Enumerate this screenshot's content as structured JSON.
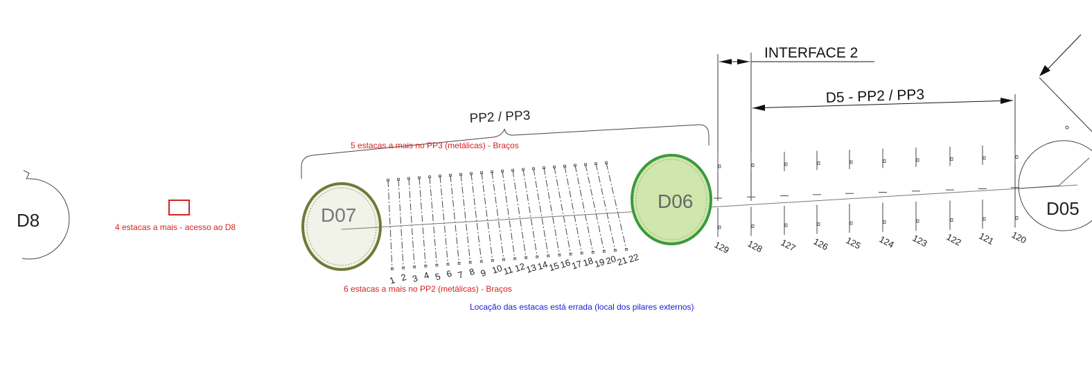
{
  "piers": {
    "d8": "D8",
    "d07": "D07",
    "d06": "D06",
    "d05": "D05"
  },
  "dimensions": {
    "interface": "INTERFACE 2",
    "pp2_pp3": "PP2 / PP3",
    "d5_pp2_pp3": "D5 - PP2 / PP3"
  },
  "annotations": {
    "d8_access": "4 estacas a mais - acesso ao D8",
    "pp3_extra": "5 estacas a mais no PP3 (metálicas) - Braços",
    "pp2_extra": "6 estacas a mais no PP2 (metálicas) - Braços",
    "location_error": "Locação das estacas está errada (local dos pilares externos)"
  },
  "pile_labels": {
    "left_group": [
      "1",
      "2",
      "3",
      "4",
      "5",
      "6",
      "7",
      "8",
      "9",
      "10",
      "11",
      "12",
      "13",
      "14",
      "15",
      "16",
      "17",
      "18",
      "19",
      "20",
      "21",
      "22"
    ],
    "right_group": [
      "129",
      "128",
      "127",
      "126",
      "125",
      "124",
      "123",
      "122",
      "121",
      "120"
    ]
  },
  "colors": {
    "annotation_red": "#d42020",
    "annotation_blue": "#1a1ad0",
    "d06_fill": "#cfe6ad",
    "d06_ring": "#3c9a3c",
    "d07_fill": "#f1f2e8",
    "d07_ring": "#6e7a36"
  }
}
